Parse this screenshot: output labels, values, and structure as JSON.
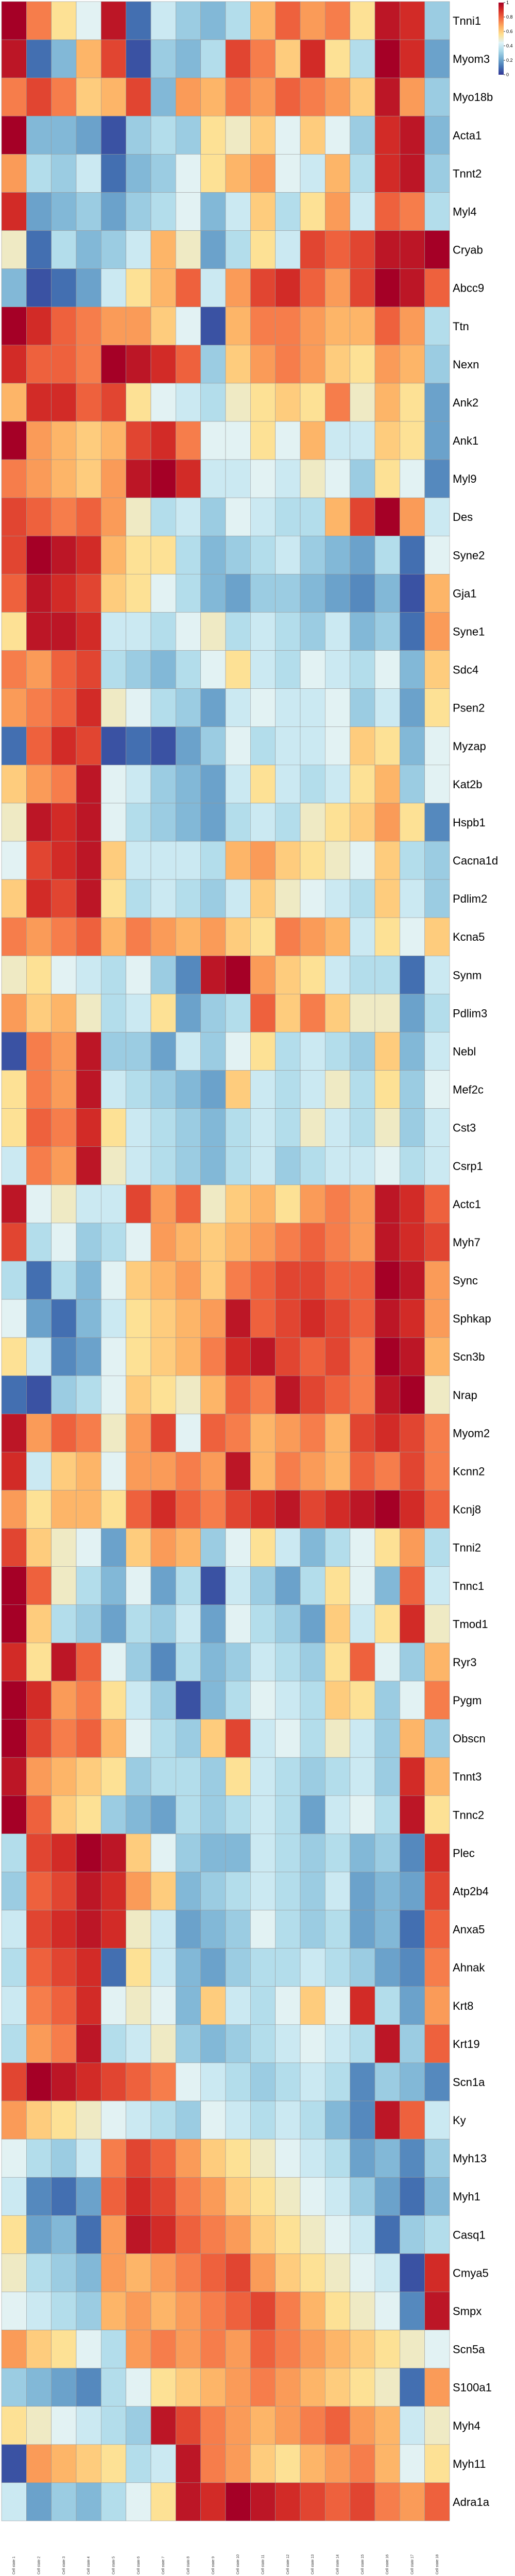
{
  "chart_data": {
    "type": "heatmap",
    "rows": [
      "Tnni1",
      "Myom3",
      "Myo18b",
      "Acta1",
      "Tnnt2",
      "Myl4",
      "Cryab",
      "Abcc9",
      "Ttn",
      "Nexn",
      "Ank2",
      "Ank1",
      "Myl9",
      "Des",
      "Syne2",
      "Gja1",
      "Syne1",
      "Sdc4",
      "Psen2",
      "Myzap",
      "Kat2b",
      "Hspb1",
      "Cacna1d",
      "Pdlim2",
      "Kcna5",
      "Synm",
      "Pdlim3",
      "Nebl",
      "Mef2c",
      "Cst3",
      "Csrp1",
      "Actc1",
      "Myh7",
      "Sync",
      "Sphkap",
      "Scn3b",
      "Nrap",
      "Myom2",
      "Kcnn2",
      "Kcnj8",
      "Tnni2",
      "Tnnc1",
      "Tmod1",
      "Ryr3",
      "Pygm",
      "Obscn",
      "Tnnt3",
      "Tnnc2",
      "Plec",
      "Atp2b4",
      "Anxa5",
      "Ahnak",
      "Krt8",
      "Krt19",
      "Scn1a",
      "Ky",
      "Myh13",
      "Myh1",
      "Casq1",
      "Cmya5",
      "Smpx",
      "Scn5a",
      "S100a1",
      "Myh4",
      "Myh11",
      "Adra1a"
    ],
    "columns": [
      "Cell state 1",
      "Cell state 2",
      "Cell state 3",
      "Cell state 4",
      "Cell state 5",
      "Cell state 6",
      "Cell state 7",
      "Cell state 8",
      "Cell state 9",
      "Cell state 10",
      "Cell state 11",
      "Cell state 12",
      "Cell state 13",
      "Cell state 14",
      "Cell state 15",
      "Cell state 16",
      "Cell state 17",
      "Cell state 18"
    ],
    "values": [
      [
        1.0,
        0.75,
        0.55,
        0.45,
        0.95,
        0.1,
        0.4,
        0.3,
        0.25,
        0.35,
        0.65,
        0.8,
        0.7,
        0.75,
        0.55,
        0.95,
        0.9,
        0.3
      ],
      [
        0.95,
        0.1,
        0.25,
        0.65,
        0.85,
        0.05,
        0.3,
        0.25,
        0.35,
        0.85,
        0.75,
        0.6,
        0.9,
        0.55,
        0.35,
        1.0,
        0.9,
        0.2
      ],
      [
        0.75,
        0.85,
        0.75,
        0.6,
        0.65,
        0.85,
        0.25,
        0.7,
        0.65,
        0.75,
        0.7,
        0.8,
        0.75,
        0.7,
        0.6,
        0.95,
        0.7,
        0.3
      ],
      [
        1.0,
        0.25,
        0.25,
        0.2,
        0.05,
        0.3,
        0.35,
        0.3,
        0.55,
        0.5,
        0.6,
        0.45,
        0.6,
        0.45,
        0.3,
        0.9,
        0.95,
        0.25
      ],
      [
        0.7,
        0.35,
        0.3,
        0.4,
        0.1,
        0.25,
        0.3,
        0.45,
        0.55,
        0.65,
        0.7,
        0.45,
        0.4,
        0.65,
        0.35,
        0.9,
        0.95,
        0.3
      ],
      [
        0.9,
        0.2,
        0.25,
        0.3,
        0.2,
        0.3,
        0.35,
        0.45,
        0.25,
        0.4,
        0.6,
        0.35,
        0.55,
        0.7,
        0.4,
        0.8,
        0.75,
        0.35
      ],
      [
        0.5,
        0.1,
        0.35,
        0.25,
        0.3,
        0.4,
        0.65,
        0.5,
        0.2,
        0.35,
        0.55,
        0.4,
        0.85,
        0.8,
        0.85,
        0.95,
        0.95,
        1.0
      ],
      [
        0.25,
        0.05,
        0.1,
        0.2,
        0.4,
        0.55,
        0.65,
        0.8,
        0.4,
        0.7,
        0.85,
        0.9,
        0.8,
        0.7,
        0.85,
        1.0,
        0.95,
        0.8
      ],
      [
        1.0,
        0.9,
        0.8,
        0.75,
        0.7,
        0.7,
        0.6,
        0.45,
        0.05,
        0.65,
        0.75,
        0.75,
        0.7,
        0.65,
        0.65,
        0.8,
        0.7,
        0.35
      ],
      [
        0.9,
        0.8,
        0.8,
        0.75,
        1.0,
        0.95,
        0.9,
        0.8,
        0.3,
        0.6,
        0.7,
        0.75,
        0.7,
        0.6,
        0.55,
        0.7,
        0.65,
        0.3
      ],
      [
        0.65,
        0.9,
        0.9,
        0.8,
        0.85,
        0.55,
        0.45,
        0.4,
        0.35,
        0.5,
        0.55,
        0.6,
        0.55,
        0.75,
        0.5,
        0.65,
        0.55,
        0.2
      ],
      [
        1.0,
        0.7,
        0.65,
        0.6,
        0.65,
        0.85,
        0.9,
        0.75,
        0.45,
        0.45,
        0.55,
        0.45,
        0.65,
        0.4,
        0.4,
        0.6,
        0.55,
        0.2
      ],
      [
        0.75,
        0.7,
        0.65,
        0.6,
        0.7,
        0.95,
        1.0,
        0.9,
        0.4,
        0.4,
        0.45,
        0.4,
        0.5,
        0.45,
        0.3,
        0.55,
        0.45,
        0.15
      ],
      [
        0.85,
        0.8,
        0.75,
        0.8,
        0.7,
        0.5,
        0.35,
        0.4,
        0.3,
        0.45,
        0.4,
        0.35,
        0.35,
        0.65,
        0.85,
        1.0,
        0.7,
        0.4
      ],
      [
        0.85,
        1.0,
        0.95,
        0.9,
        0.65,
        0.55,
        0.55,
        0.35,
        0.25,
        0.3,
        0.35,
        0.4,
        0.3,
        0.25,
        0.2,
        0.35,
        0.1,
        0.45
      ],
      [
        0.8,
        0.95,
        0.9,
        0.85,
        0.6,
        0.55,
        0.45,
        0.35,
        0.25,
        0.2,
        0.3,
        0.3,
        0.25,
        0.2,
        0.15,
        0.25,
        0.05,
        0.65
      ],
      [
        0.55,
        0.95,
        0.95,
        0.9,
        0.4,
        0.4,
        0.35,
        0.45,
        0.5,
        0.35,
        0.4,
        0.35,
        0.3,
        0.4,
        0.25,
        0.3,
        0.1,
        0.7
      ],
      [
        0.75,
        0.7,
        0.8,
        0.85,
        0.35,
        0.3,
        0.25,
        0.35,
        0.45,
        0.55,
        0.4,
        0.35,
        0.45,
        0.4,
        0.35,
        0.45,
        0.25,
        0.6
      ],
      [
        0.7,
        0.75,
        0.8,
        0.9,
        0.5,
        0.45,
        0.35,
        0.3,
        0.2,
        0.4,
        0.45,
        0.4,
        0.4,
        0.45,
        0.3,
        0.4,
        0.2,
        0.55
      ],
      [
        0.1,
        0.8,
        0.9,
        0.85,
        0.05,
        0.1,
        0.05,
        0.2,
        0.3,
        0.45,
        0.35,
        0.4,
        0.4,
        0.45,
        0.6,
        0.55,
        0.25,
        0.45
      ],
      [
        0.6,
        0.7,
        0.75,
        0.95,
        0.45,
        0.4,
        0.3,
        0.25,
        0.2,
        0.4,
        0.55,
        0.4,
        0.35,
        0.4,
        0.55,
        0.65,
        0.3,
        0.45
      ],
      [
        0.5,
        0.95,
        0.9,
        0.95,
        0.45,
        0.35,
        0.3,
        0.25,
        0.2,
        0.35,
        0.4,
        0.35,
        0.5,
        0.55,
        0.6,
        0.7,
        0.55,
        0.15
      ],
      [
        0.45,
        0.85,
        0.9,
        0.95,
        0.6,
        0.4,
        0.4,
        0.4,
        0.35,
        0.65,
        0.7,
        0.6,
        0.55,
        0.5,
        0.45,
        0.6,
        0.35,
        0.3
      ],
      [
        0.6,
        0.9,
        0.85,
        0.95,
        0.55,
        0.35,
        0.4,
        0.35,
        0.3,
        0.4,
        0.6,
        0.5,
        0.45,
        0.4,
        0.35,
        0.6,
        0.4,
        0.3
      ],
      [
        0.75,
        0.7,
        0.75,
        0.8,
        0.65,
        0.75,
        0.7,
        0.65,
        0.7,
        0.6,
        0.55,
        0.75,
        0.7,
        0.65,
        0.4,
        0.55,
        0.45,
        0.6
      ],
      [
        0.5,
        0.55,
        0.45,
        0.4,
        0.35,
        0.45,
        0.3,
        0.15,
        0.95,
        1.0,
        0.7,
        0.6,
        0.55,
        0.4,
        0.35,
        0.35,
        0.1,
        0.4
      ],
      [
        0.7,
        0.6,
        0.65,
        0.5,
        0.35,
        0.4,
        0.55,
        0.2,
        0.3,
        0.35,
        0.8,
        0.6,
        0.75,
        0.6,
        0.5,
        0.5,
        0.2,
        0.35
      ],
      [
        0.05,
        0.75,
        0.7,
        0.95,
        0.3,
        0.3,
        0.2,
        0.4,
        0.3,
        0.45,
        0.55,
        0.35,
        0.4,
        0.35,
        0.3,
        0.6,
        0.25,
        0.4
      ],
      [
        0.55,
        0.75,
        0.7,
        0.95,
        0.4,
        0.35,
        0.3,
        0.25,
        0.2,
        0.6,
        0.4,
        0.35,
        0.4,
        0.5,
        0.35,
        0.55,
        0.3,
        0.45
      ],
      [
        0.55,
        0.8,
        0.75,
        0.9,
        0.55,
        0.4,
        0.35,
        0.3,
        0.25,
        0.35,
        0.4,
        0.35,
        0.5,
        0.4,
        0.35,
        0.5,
        0.3,
        0.4
      ],
      [
        0.4,
        0.75,
        0.7,
        0.95,
        0.5,
        0.4,
        0.35,
        0.3,
        0.25,
        0.35,
        0.4,
        0.3,
        0.35,
        0.4,
        0.4,
        0.45,
        0.35,
        0.4
      ],
      [
        0.95,
        0.45,
        0.5,
        0.4,
        0.4,
        0.85,
        0.7,
        0.8,
        0.5,
        0.6,
        0.65,
        0.55,
        0.7,
        0.75,
        0.7,
        0.95,
        0.9,
        0.8
      ],
      [
        0.85,
        0.35,
        0.45,
        0.3,
        0.35,
        0.45,
        0.7,
        0.65,
        0.6,
        0.65,
        0.7,
        0.75,
        0.8,
        0.75,
        0.7,
        0.95,
        0.9,
        0.85
      ],
      [
        0.35,
        0.1,
        0.35,
        0.25,
        0.45,
        0.6,
        0.65,
        0.7,
        0.6,
        0.75,
        0.8,
        0.85,
        0.85,
        0.8,
        0.8,
        1.0,
        0.95,
        0.7
      ],
      [
        0.45,
        0.2,
        0.1,
        0.25,
        0.4,
        0.55,
        0.6,
        0.65,
        0.7,
        0.95,
        0.8,
        0.85,
        0.9,
        0.85,
        0.8,
        0.95,
        0.9,
        0.7
      ],
      [
        0.55,
        0.4,
        0.15,
        0.2,
        0.45,
        0.55,
        0.6,
        0.65,
        0.75,
        0.9,
        0.95,
        0.85,
        0.8,
        0.85,
        0.75,
        1.0,
        0.95,
        0.65
      ],
      [
        0.1,
        0.05,
        0.3,
        0.35,
        0.45,
        0.6,
        0.55,
        0.5,
        0.65,
        0.8,
        0.75,
        0.95,
        0.85,
        0.8,
        0.75,
        0.95,
        1.0,
        0.5
      ],
      [
        0.95,
        0.7,
        0.8,
        0.75,
        0.5,
        0.7,
        0.85,
        0.45,
        0.8,
        0.75,
        0.65,
        0.7,
        0.75,
        0.65,
        0.85,
        0.9,
        0.85,
        0.75
      ],
      [
        0.9,
        0.4,
        0.6,
        0.65,
        0.45,
        0.7,
        0.7,
        0.75,
        0.7,
        0.95,
        0.65,
        0.75,
        0.7,
        0.65,
        0.8,
        0.75,
        0.85,
        0.75
      ],
      [
        0.7,
        0.55,
        0.65,
        0.65,
        0.55,
        0.8,
        0.9,
        0.8,
        0.75,
        0.85,
        0.9,
        0.95,
        0.85,
        0.9,
        0.95,
        1.0,
        0.9,
        0.8
      ],
      [
        0.85,
        0.6,
        0.5,
        0.45,
        0.2,
        0.6,
        0.7,
        0.65,
        0.3,
        0.45,
        0.55,
        0.4,
        0.25,
        0.35,
        0.45,
        0.55,
        0.7,
        0.35
      ],
      [
        1.0,
        0.8,
        0.5,
        0.35,
        0.25,
        0.45,
        0.2,
        0.35,
        0.05,
        0.4,
        0.3,
        0.2,
        0.35,
        0.55,
        0.45,
        0.25,
        0.8,
        0.4
      ],
      [
        1.0,
        0.6,
        0.35,
        0.3,
        0.2,
        0.35,
        0.3,
        0.4,
        0.2,
        0.45,
        0.35,
        0.3,
        0.2,
        0.6,
        0.4,
        0.55,
        0.9,
        0.5
      ],
      [
        0.9,
        0.55,
        0.95,
        0.8,
        0.45,
        0.3,
        0.15,
        0.35,
        0.25,
        0.3,
        0.4,
        0.35,
        0.3,
        0.55,
        0.8,
        0.45,
        0.3,
        0.65
      ],
      [
        1.0,
        0.9,
        0.7,
        0.75,
        0.55,
        0.4,
        0.3,
        0.05,
        0.25,
        0.35,
        0.45,
        0.4,
        0.35,
        0.6,
        0.55,
        0.3,
        0.45,
        0.75
      ],
      [
        1.0,
        0.85,
        0.75,
        0.8,
        0.65,
        0.45,
        0.35,
        0.3,
        0.6,
        0.85,
        0.4,
        0.45,
        0.35,
        0.5,
        0.4,
        0.3,
        0.65,
        0.3
      ],
      [
        0.95,
        0.7,
        0.65,
        0.6,
        0.55,
        0.3,
        0.35,
        0.35,
        0.3,
        0.55,
        0.4,
        0.35,
        0.3,
        0.35,
        0.4,
        0.3,
        0.9,
        0.65
      ],
      [
        1.0,
        0.8,
        0.6,
        0.55,
        0.3,
        0.25,
        0.2,
        0.35,
        0.3,
        0.35,
        0.4,
        0.35,
        0.2,
        0.4,
        0.45,
        0.35,
        0.95,
        0.55
      ],
      [
        0.35,
        0.85,
        0.9,
        1.0,
        0.95,
        0.6,
        0.45,
        0.3,
        0.25,
        0.25,
        0.4,
        0.35,
        0.3,
        0.35,
        0.25,
        0.3,
        0.15,
        0.9
      ],
      [
        0.3,
        0.8,
        0.85,
        0.95,
        0.9,
        0.7,
        0.6,
        0.25,
        0.3,
        0.35,
        0.4,
        0.35,
        0.3,
        0.4,
        0.2,
        0.25,
        0.2,
        0.85
      ],
      [
        0.4,
        0.85,
        0.9,
        0.95,
        0.9,
        0.5,
        0.4,
        0.2,
        0.25,
        0.3,
        0.45,
        0.35,
        0.3,
        0.35,
        0.2,
        0.25,
        0.1,
        0.8
      ],
      [
        0.35,
        0.8,
        0.85,
        0.9,
        0.1,
        0.55,
        0.4,
        0.25,
        0.2,
        0.3,
        0.35,
        0.35,
        0.4,
        0.35,
        0.3,
        0.2,
        0.15,
        0.75
      ],
      [
        0.4,
        0.75,
        0.8,
        0.9,
        0.45,
        0.5,
        0.45,
        0.25,
        0.6,
        0.4,
        0.35,
        0.45,
        0.6,
        0.45,
        0.9,
        0.35,
        0.2,
        0.7
      ],
      [
        0.35,
        0.7,
        0.75,
        0.95,
        0.35,
        0.4,
        0.5,
        0.3,
        0.25,
        0.3,
        0.35,
        0.4,
        0.45,
        0.4,
        0.35,
        0.95,
        0.3,
        0.8
      ],
      [
        0.85,
        1.0,
        0.95,
        0.9,
        0.85,
        0.8,
        0.75,
        0.45,
        0.4,
        0.35,
        0.3,
        0.35,
        0.4,
        0.35,
        0.15,
        0.3,
        0.25,
        0.15
      ],
      [
        0.7,
        0.6,
        0.55,
        0.5,
        0.45,
        0.4,
        0.35,
        0.3,
        0.45,
        0.4,
        0.35,
        0.4,
        0.35,
        0.25,
        0.15,
        0.95,
        0.8,
        0.4
      ],
      [
        0.45,
        0.35,
        0.3,
        0.4,
        0.75,
        0.85,
        0.8,
        0.7,
        0.6,
        0.55,
        0.5,
        0.45,
        0.4,
        0.35,
        0.2,
        0.25,
        0.15,
        0.3
      ],
      [
        0.4,
        0.15,
        0.1,
        0.2,
        0.8,
        0.9,
        0.85,
        0.75,
        0.7,
        0.6,
        0.55,
        0.5,
        0.45,
        0.4,
        0.3,
        0.2,
        0.1,
        0.25
      ],
      [
        0.55,
        0.2,
        0.25,
        0.1,
        0.7,
        0.95,
        0.9,
        0.8,
        0.75,
        0.7,
        0.6,
        0.55,
        0.5,
        0.45,
        0.4,
        0.1,
        0.3,
        0.35
      ],
      [
        0.5,
        0.35,
        0.3,
        0.25,
        0.7,
        0.65,
        0.7,
        0.75,
        0.8,
        0.85,
        0.7,
        0.6,
        0.55,
        0.5,
        0.45,
        0.4,
        0.05,
        0.9
      ],
      [
        0.45,
        0.4,
        0.35,
        0.3,
        0.65,
        0.7,
        0.65,
        0.7,
        0.75,
        0.8,
        0.85,
        0.75,
        0.65,
        0.55,
        0.5,
        0.45,
        0.15,
        0.95
      ],
      [
        0.7,
        0.6,
        0.55,
        0.45,
        0.35,
        0.7,
        0.75,
        0.7,
        0.75,
        0.7,
        0.8,
        0.75,
        0.7,
        0.65,
        0.6,
        0.55,
        0.5,
        0.45
      ],
      [
        0.3,
        0.25,
        0.2,
        0.15,
        0.35,
        0.45,
        0.55,
        0.6,
        0.65,
        0.7,
        0.75,
        0.7,
        0.65,
        0.6,
        0.55,
        0.5,
        0.1,
        0.7
      ],
      [
        0.55,
        0.5,
        0.45,
        0.4,
        0.35,
        0.3,
        0.95,
        0.85,
        0.75,
        0.7,
        0.65,
        0.7,
        0.75,
        0.8,
        0.7,
        0.65,
        0.4,
        0.5
      ],
      [
        0.05,
        0.7,
        0.65,
        0.6,
        0.55,
        0.35,
        0.4,
        0.95,
        0.75,
        0.7,
        0.6,
        0.55,
        0.65,
        0.7,
        0.75,
        0.65,
        0.45,
        0.55
      ],
      [
        0.4,
        0.2,
        0.3,
        0.25,
        0.35,
        0.45,
        0.55,
        0.95,
        0.9,
        1.0,
        0.95,
        0.9,
        0.85,
        0.8,
        0.85,
        0.75,
        0.7,
        0.8
      ]
    ],
    "row_label_side": "right",
    "column_label_position": "bottom",
    "colorbar": {
      "position": "top-right",
      "range": [
        0,
        1
      ],
      "ticks": [
        "1",
        "0.8",
        "0.6",
        "0.4",
        "0.2",
        "0"
      ]
    },
    "colormap": [
      "#313695",
      "#4575b4",
      "#74add1",
      "#abd9e9",
      "#e0f3f8",
      "#fee090",
      "#fdae61",
      "#f46d43",
      "#d73027",
      "#a50026"
    ],
    "grid_lines": true
  }
}
